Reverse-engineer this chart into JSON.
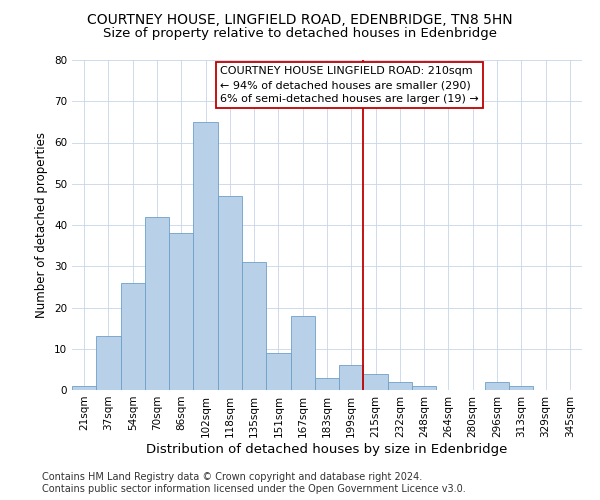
{
  "title": "COURTNEY HOUSE, LINGFIELD ROAD, EDENBRIDGE, TN8 5HN",
  "subtitle": "Size of property relative to detached houses in Edenbridge",
  "xlabel": "Distribution of detached houses by size in Edenbridge",
  "ylabel": "Number of detached properties",
  "categories": [
    "21sqm",
    "37sqm",
    "54sqm",
    "70sqm",
    "86sqm",
    "102sqm",
    "118sqm",
    "135sqm",
    "151sqm",
    "167sqm",
    "183sqm",
    "199sqm",
    "215sqm",
    "232sqm",
    "248sqm",
    "264sqm",
    "280sqm",
    "296sqm",
    "313sqm",
    "329sqm",
    "345sqm"
  ],
  "values": [
    1,
    13,
    26,
    42,
    38,
    65,
    47,
    31,
    9,
    18,
    3,
    6,
    4,
    2,
    1,
    0,
    0,
    2,
    1,
    0,
    0
  ],
  "bar_color": "#b8d0e8",
  "bar_edge_color": "#6ca0c8",
  "annotation_text_line1": "COURTNEY HOUSE LINGFIELD ROAD: 210sqm",
  "annotation_text_line2": "← 94% of detached houses are smaller (290)",
  "annotation_text_line3": "6% of semi-detached houses are larger (19) →",
  "vline_color": "#c00000",
  "ylim": [
    0,
    80
  ],
  "yticks": [
    0,
    10,
    20,
    30,
    40,
    50,
    60,
    70,
    80
  ],
  "footnote1": "Contains HM Land Registry data © Crown copyright and database right 2024.",
  "footnote2": "Contains public sector information licensed under the Open Government Licence v3.0.",
  "background_color": "#ffffff",
  "grid_color": "#c8d4e8",
  "title_fontsize": 10,
  "subtitle_fontsize": 9.5,
  "xlabel_fontsize": 9.5,
  "ylabel_fontsize": 8.5,
  "tick_fontsize": 7.5,
  "annotation_fontsize": 8,
  "footnote_fontsize": 7
}
